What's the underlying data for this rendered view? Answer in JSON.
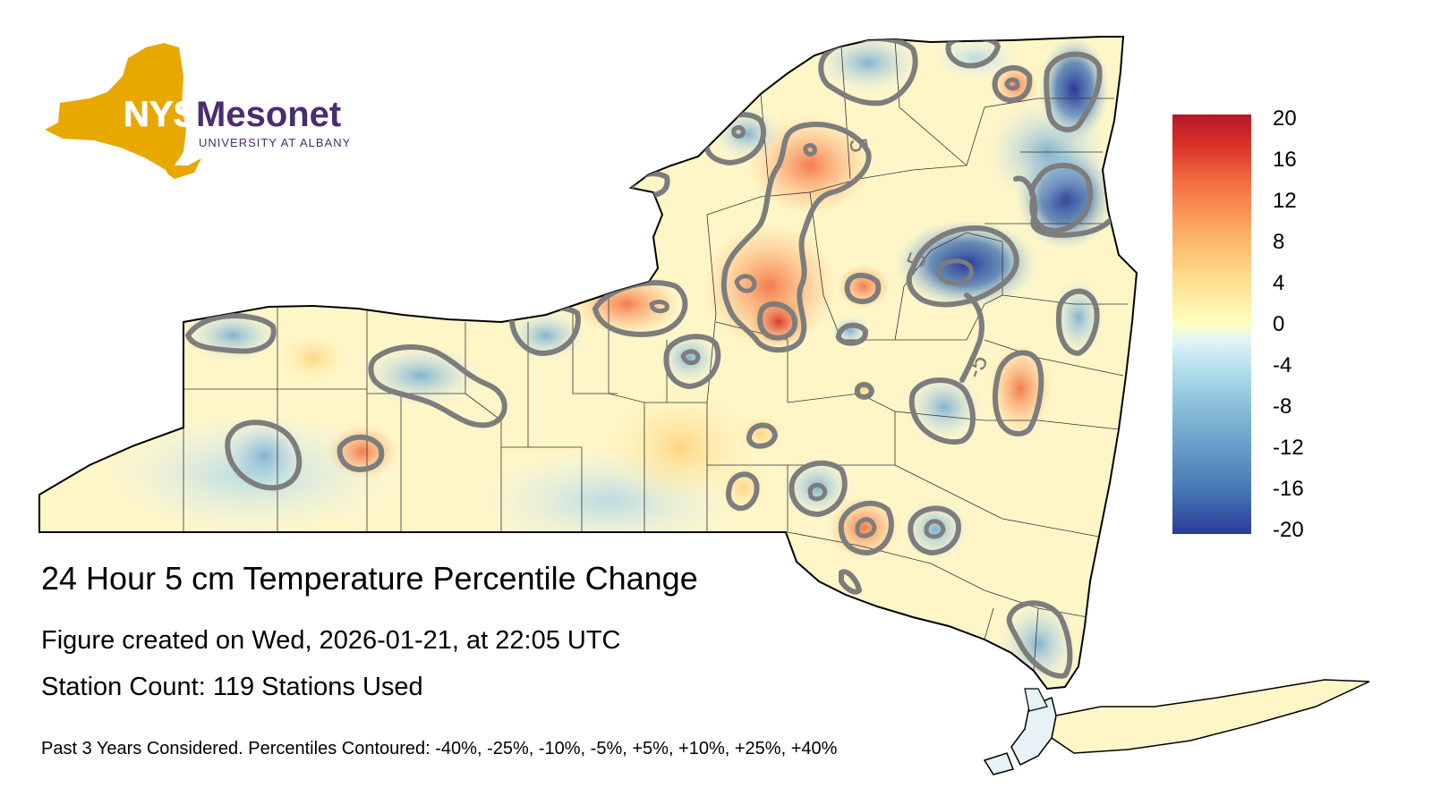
{
  "logo": {
    "nys": "NYS",
    "mesonet": "Mesonet",
    "university": "UNIVERSITY AT ALBANY",
    "colors": {
      "gold": "#E8A800",
      "purple": "#4B2C6F"
    }
  },
  "title": "24 Hour 5 cm Temperature Percentile Change",
  "created": "Figure created on Wed, 2026-01-21, at 22:05 UTC",
  "station_count": "Station Count: 119 Stations Used",
  "footnote": "Past 3 Years Considered. Percentiles Contoured: -40%, -25%, -10%, -5%, +5%, +10%, +25%, +40%",
  "contour_labels": [
    "5",
    "-5",
    "-5"
  ],
  "colorbar": {
    "ticks": [
      "20",
      "16",
      "12",
      "8",
      "4",
      "0",
      "-4",
      "-8",
      "-12",
      "-16",
      "-20"
    ],
    "min": -20,
    "max": 20,
    "colors": [
      "#2B3A98",
      "#4575B4",
      "#74ADD1",
      "#ABD9E9",
      "#E0F3F8",
      "#FFFFBF",
      "#FEE090",
      "#FDAE61",
      "#F46D43",
      "#D73027",
      "#B2182B"
    ]
  }
}
